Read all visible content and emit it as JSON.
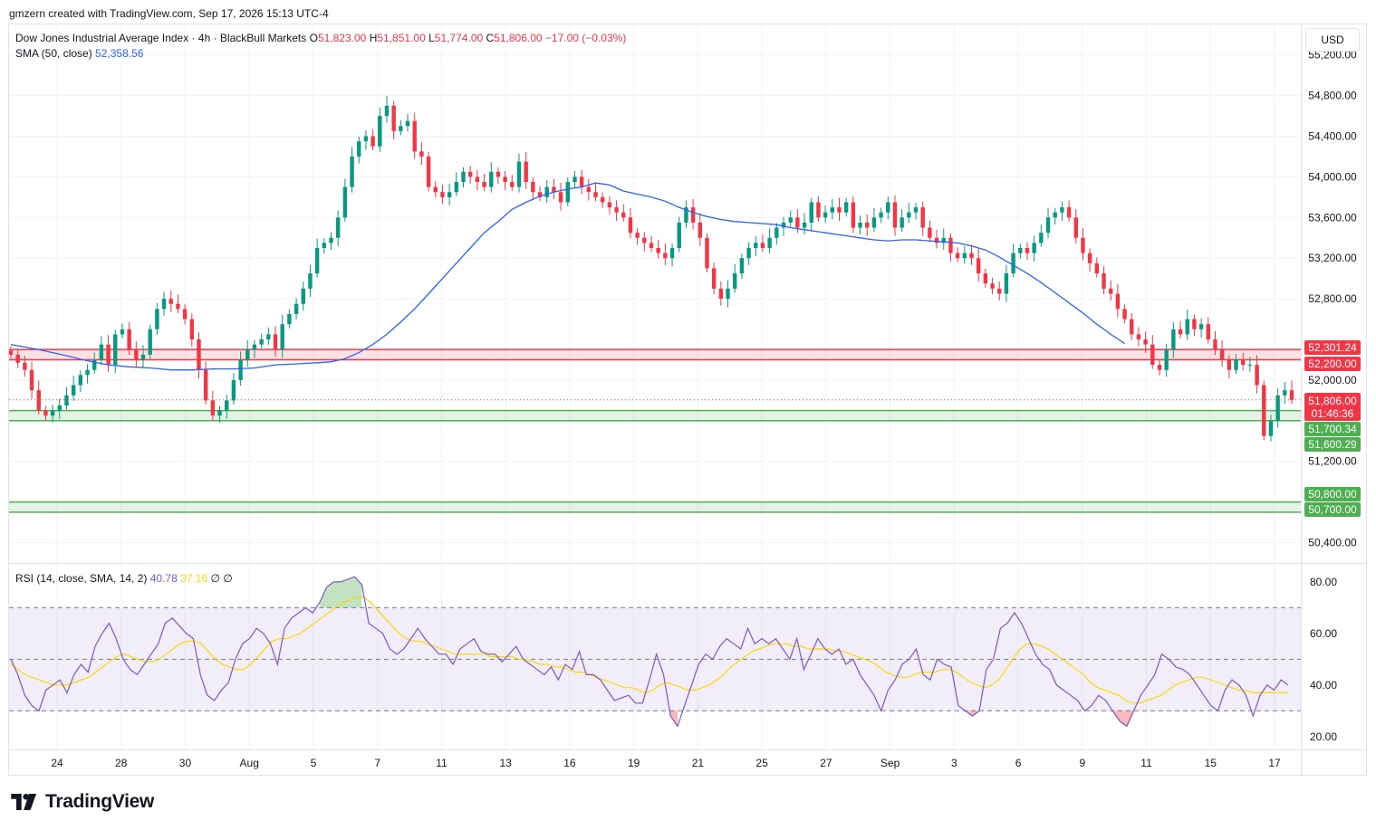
{
  "header": {
    "credit": "gmzern created with TradingView.com, Sep 17, 2026 15:13 UTC-4"
  },
  "legend": {
    "symbol": "Dow Jones Industrial Average Index · 4h · BlackBull Markets",
    "o_label": "O",
    "o_value": "51,823.00",
    "h_label": "H",
    "h_value": "51,851.00",
    "l_label": "L",
    "l_value": "51,774.00",
    "c_label": "C",
    "c_value": "51,806.00",
    "change": "−17.00 (−0.03%)",
    "sma_label": "SMA (50, close)",
    "sma_value": "52,358.56",
    "rsi_label": "RSI (14, close, SMA, 14, 2)",
    "rsi_value": "40.78",
    "rsi_ma_value": "37.16",
    "rsi_extra1": "∅",
    "rsi_extra2": "∅"
  },
  "currency": "USD",
  "brand": {
    "name": "TradingView"
  },
  "colors": {
    "up": "#089981",
    "down": "#f23645",
    "sma": "#2962ff",
    "rsi": "#7e57c2",
    "rsi_ma": "#ffd600",
    "resistance_zone": "#f23645",
    "support_zone": "#4caf50",
    "grid": "#f0f3fa"
  },
  "chart_data": [
    {
      "type": "candlestick",
      "title": "Dow Jones Industrial Average Index · 4h · BlackBull Markets",
      "ylim": [
        50200,
        55500
      ],
      "y_ticks": [
        "55,200.00",
        "54,800.00",
        "54,400.00",
        "54,000.00",
        "53,600.00",
        "53,200.00",
        "52,800.00",
        "52,000.00",
        "51,200.00",
        "50,400.00"
      ],
      "x_ticks": [
        "24",
        "28",
        "30",
        "Aug",
        "5",
        "7",
        "11",
        "13",
        "16",
        "19",
        "21",
        "25",
        "27",
        "Sep",
        "3",
        "6",
        "9",
        "11",
        "15",
        "17"
      ],
      "last_price": "51,806.00",
      "countdown": "01:46:36",
      "zones": [
        {
          "name": "resistance",
          "top": 52301.24,
          "bottom": 52200.0,
          "top_label": "52,301.24",
          "bottom_label": "52,200.00",
          "color": "red"
        },
        {
          "name": "support",
          "top": 51700.34,
          "bottom": 51600.29,
          "top_label": "51,700.34",
          "bottom_label": "51,600.29",
          "color": "green"
        },
        {
          "name": "support",
          "top": 50800.0,
          "bottom": 50700.0,
          "top_label": "50,800.00",
          "bottom_label": "50,700.00",
          "color": "green"
        }
      ],
      "close": [
        52250,
        52170,
        52100,
        51900,
        51700,
        51650,
        51700,
        51750,
        51850,
        51950,
        52050,
        52100,
        52200,
        52350,
        52150,
        52450,
        52500,
        52300,
        52200,
        52250,
        52500,
        52700,
        52800,
        52750,
        52700,
        52600,
        52400,
        52100,
        51800,
        51650,
        51700,
        51800,
        52000,
        52200,
        52300,
        52350,
        52400,
        52450,
        52300,
        52550,
        52650,
        52750,
        52900,
        53050,
        53300,
        53350,
        53400,
        53600,
        53900,
        54200,
        54350,
        54400,
        54300,
        54600,
        54700,
        54450,
        54500,
        54550,
        54250,
        54200,
        53900,
        53850,
        53800,
        53850,
        53950,
        54050,
        54000,
        53950,
        53900,
        54050,
        54000,
        53950,
        53900,
        54150,
        53950,
        53850,
        53800,
        53900,
        53850,
        53750,
        53950,
        54000,
        53900,
        53850,
        53800,
        53750,
        53700,
        53650,
        53600,
        53450,
        53400,
        53350,
        53300,
        53250,
        53200,
        53300,
        53550,
        53700,
        53550,
        53400,
        53100,
        52900,
        52800,
        52900,
        53050,
        53200,
        53300,
        53350,
        53300,
        53400,
        53500,
        53550,
        53600,
        53500,
        53550,
        53750,
        53600,
        53650,
        53700,
        53650,
        53750,
        53500,
        53550,
        53500,
        53600,
        53650,
        53750,
        53500,
        53600,
        53650,
        53700,
        53500,
        53400,
        53350,
        53400,
        53250,
        53200,
        53250,
        53200,
        53050,
        52950,
        52900,
        52850,
        53050,
        53250,
        53300,
        53250,
        53350,
        53450,
        53600,
        53650,
        53700,
        53600,
        53400,
        53250,
        53150,
        53050,
        52900,
        52850,
        52700,
        52600,
        52450,
        52400,
        52350,
        52150,
        52100,
        52300,
        52500,
        52450,
        52600,
        52500,
        52550,
        52400,
        52300,
        52200,
        52100,
        52200,
        52150,
        52150,
        51950,
        51450,
        51600,
        51850,
        51900,
        51806
      ],
      "sma": [
        52350,
        52300,
        52240,
        52190,
        52150,
        52130,
        52120,
        52100,
        52100,
        52110,
        52110,
        52120,
        52150,
        52160,
        52170,
        52180,
        52210,
        52270,
        52350,
        52450,
        52570,
        52700,
        52850,
        53000,
        53150,
        53300,
        53450,
        53560,
        53680,
        53750,
        53810,
        53850,
        53880,
        53900,
        53940,
        53920,
        53860,
        53830,
        53800,
        53760,
        53700,
        53650,
        53610,
        53580,
        53560,
        53550,
        53540,
        53530,
        53500,
        53480,
        53460,
        53440,
        53420,
        53400,
        53380,
        53370,
        53380,
        53380,
        53370,
        53360,
        53350,
        53320,
        53280,
        53210,
        53130,
        53050,
        52960,
        52860,
        52760,
        52660,
        52550,
        52450,
        52360
      ],
      "sma_x": [
        0,
        4,
        8,
        11,
        14,
        17,
        20,
        23,
        26,
        29,
        32,
        35,
        38,
        41,
        44,
        46,
        48,
        50,
        52,
        54,
        56,
        58,
        60,
        62,
        64,
        66,
        68,
        70,
        72,
        74,
        76,
        78,
        80,
        82,
        84,
        86,
        88,
        90,
        92,
        94,
        96,
        98,
        100,
        102,
        104,
        106,
        108,
        110,
        112,
        114,
        116,
        118,
        120,
        122,
        124,
        126,
        128,
        130,
        132,
        134,
        136,
        138,
        140,
        142,
        144,
        146,
        148,
        150,
        152,
        154,
        156,
        158,
        160
      ]
    },
    {
      "type": "line",
      "title": "RSI (14, close, SMA, 14, 2)",
      "ylim": [
        15,
        87
      ],
      "y_ticks": [
        "80.00",
        "60.00",
        "40.00",
        "20.00"
      ],
      "bands": [
        30,
        50,
        70
      ],
      "series": [
        {
          "name": "RSI",
          "values": [
            50,
            44,
            36,
            32,
            30,
            38,
            40,
            42,
            37,
            44,
            48,
            45,
            55,
            60,
            64,
            58,
            50,
            46,
            44,
            48,
            52,
            56,
            64,
            66,
            63,
            60,
            58,
            44,
            36,
            34,
            38,
            41,
            50,
            56,
            58,
            62,
            60,
            56,
            48,
            62,
            66,
            68,
            70,
            68,
            72,
            78,
            80,
            80,
            81,
            82,
            79,
            64,
            62,
            60,
            54,
            52,
            54,
            58,
            62,
            58,
            55,
            52,
            52,
            48,
            54,
            56,
            58,
            53,
            52,
            52,
            49,
            52,
            55,
            50,
            48,
            46,
            44,
            47,
            42,
            48,
            46,
            53,
            44,
            44,
            42,
            38,
            34,
            35,
            36,
            33,
            33,
            42,
            52,
            44,
            28,
            24,
            32,
            40,
            48,
            52,
            50,
            55,
            58,
            56,
            54,
            62,
            56,
            58,
            56,
            58,
            54,
            50,
            58,
            46,
            52,
            58,
            54,
            52,
            54,
            48,
            50,
            44,
            40,
            36,
            30,
            38,
            42,
            48,
            50,
            54,
            44,
            42,
            50,
            48,
            47,
            32,
            30,
            28,
            30,
            46,
            50,
            62,
            64,
            68,
            64,
            58,
            52,
            48,
            46,
            40,
            38,
            36,
            34,
            30,
            32,
            36,
            34,
            30,
            26,
            24,
            30,
            36,
            40,
            44,
            52,
            50,
            47,
            46,
            44,
            40,
            36,
            32,
            30,
            38,
            42,
            40,
            36,
            28,
            36,
            40,
            38,
            42,
            40
          ]
        },
        {
          "name": "RSI-based MA",
          "values": [
            48,
            46,
            44,
            43,
            42,
            41,
            40,
            40,
            40,
            41,
            42,
            43,
            45,
            47,
            49,
            51,
            52,
            51,
            50,
            49,
            49,
            50,
            52,
            54,
            56,
            57,
            57,
            56,
            53,
            50,
            48,
            47,
            46,
            46,
            48,
            51,
            54,
            57,
            58,
            58,
            59,
            60,
            62,
            64,
            66,
            68,
            70,
            72,
            73,
            74,
            74,
            72,
            69,
            66,
            63,
            60,
            58,
            57,
            57,
            56,
            55,
            54,
            53,
            52,
            52,
            52,
            52,
            52,
            51,
            51,
            51,
            51,
            50,
            50,
            49,
            48,
            48,
            47,
            47,
            46,
            45,
            45,
            44,
            43,
            42,
            41,
            40,
            39,
            39,
            38,
            37,
            38,
            40,
            41,
            40,
            39,
            38,
            38,
            39,
            40,
            42,
            44,
            47,
            49,
            51,
            53,
            54,
            55,
            56,
            56,
            56,
            55,
            55,
            54,
            54,
            54,
            54,
            53,
            53,
            52,
            51,
            50,
            49,
            47,
            45,
            44,
            43,
            43,
            44,
            45,
            45,
            45,
            46,
            46,
            45,
            43,
            41,
            40,
            39,
            40,
            42,
            46,
            50,
            54,
            56,
            56,
            55,
            54,
            52,
            50,
            48,
            46,
            44,
            41,
            39,
            38,
            37,
            36,
            34,
            33,
            33,
            34,
            35,
            36,
            38,
            40,
            41,
            42,
            43,
            43,
            42,
            41,
            40,
            39,
            38,
            38,
            37,
            37,
            37,
            37,
            37,
            37
          ]
        }
      ]
    }
  ]
}
